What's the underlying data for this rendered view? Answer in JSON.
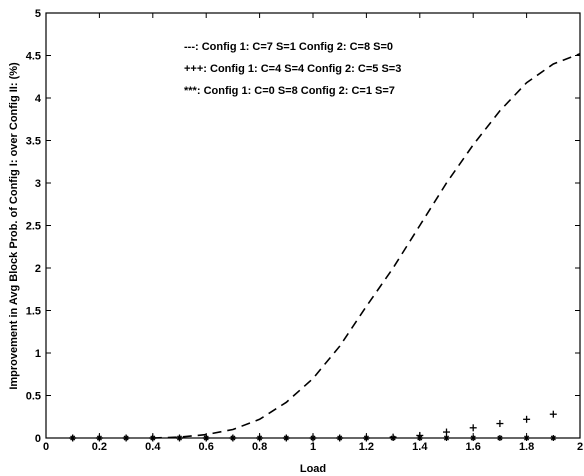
{
  "chart_data": {
    "type": "line",
    "title": "",
    "xlabel": "Load",
    "ylabel": "Improvement in Avg Block Prob. of Config I: over Config II: (%)",
    "xlim": [
      0,
      2
    ],
    "ylim": [
      0,
      5
    ],
    "xticks": [
      "0",
      "0.2",
      "0.4",
      "0.6",
      "0.8",
      "1",
      "1.2",
      "1.4",
      "1.6",
      "1.8",
      "2"
    ],
    "yticks": [
      "0",
      "0.5",
      "1",
      "1.5",
      "2",
      "2.5",
      "3",
      "3.5",
      "4",
      "4.5",
      "5"
    ],
    "grid": false,
    "legend_position": "top-center",
    "series": [
      {
        "name": "Config 1: C=7 S=1 Config 2: C=8 S=0",
        "legend_symbol": "---:",
        "style": "dashed",
        "x": [
          0.4,
          0.5,
          0.6,
          0.7,
          0.8,
          0.9,
          1.0,
          1.1,
          1.2,
          1.3,
          1.4,
          1.5,
          1.6,
          1.7,
          1.8,
          1.9,
          2.0
        ],
        "y": [
          0.0,
          0.01,
          0.04,
          0.1,
          0.22,
          0.42,
          0.7,
          1.08,
          1.55,
          2.0,
          2.5,
          3.0,
          3.45,
          3.85,
          4.18,
          4.4,
          4.52
        ]
      },
      {
        "name": "Config 1: C=4 S=4 Config 2: C=5 S=3",
        "legend_symbol": "+++:",
        "style": "plus",
        "x": [
          0.1,
          0.2,
          0.3,
          0.4,
          0.5,
          0.6,
          0.7,
          0.8,
          0.9,
          1.0,
          1.1,
          1.2,
          1.3,
          1.4,
          1.5,
          1.6,
          1.7,
          1.8,
          1.9
        ],
        "y": [
          0,
          0,
          0,
          0,
          0,
          0,
          0,
          0,
          0,
          0,
          0,
          0,
          0.01,
          0.03,
          0.07,
          0.12,
          0.17,
          0.22,
          0.28
        ]
      },
      {
        "name": "Config 1: C=0 S=8 Config 2: C=1 S=7",
        "legend_symbol": "***:",
        "style": "star",
        "x": [
          0.1,
          0.2,
          0.3,
          0.4,
          0.5,
          0.6,
          0.7,
          0.8,
          0.9,
          1.0,
          1.1,
          1.2,
          1.3,
          1.4,
          1.5,
          1.6,
          1.7,
          1.8,
          1.9
        ],
        "y": [
          0,
          0,
          0,
          0,
          0,
          0,
          0,
          0,
          0,
          0,
          0,
          0,
          0,
          0,
          0,
          0,
          0,
          0,
          0
        ]
      }
    ]
  }
}
